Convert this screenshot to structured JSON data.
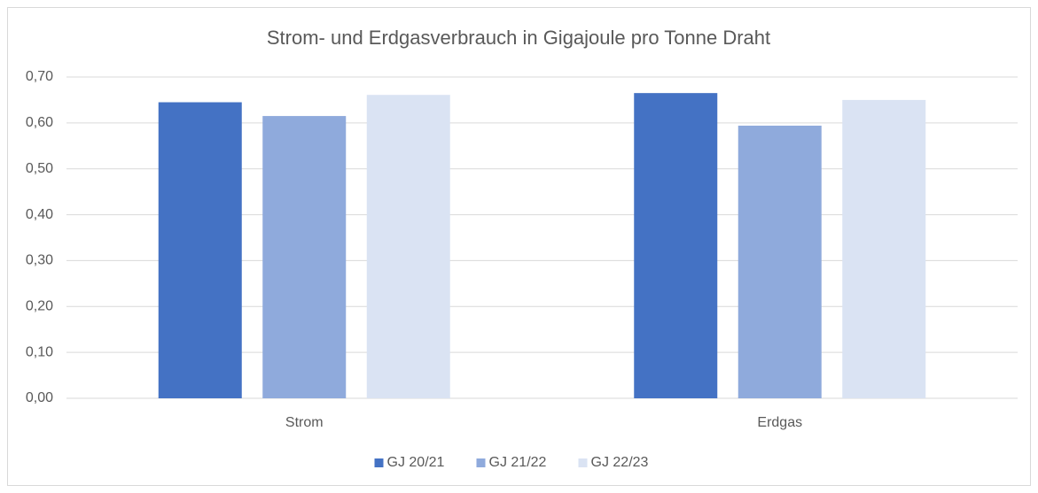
{
  "chart_data": {
    "type": "bar",
    "title": "Strom- und Erdgasverbrauch in Gigajoule pro Tonne Draht",
    "categories": [
      "Strom",
      "Erdgas"
    ],
    "series": [
      {
        "name": "GJ 20/21",
        "color": "#4472c4",
        "values": [
          0.645,
          0.665
        ]
      },
      {
        "name": "GJ 21/22",
        "color": "#8faadc",
        "values": [
          0.615,
          0.594
        ]
      },
      {
        "name": "GJ 22/23",
        "color": "#dae3f3",
        "values": [
          0.661,
          0.65
        ]
      }
    ],
    "ylim": [
      0,
      0.7
    ],
    "yticks": [
      {
        "value": 0,
        "label": "0,00"
      },
      {
        "value": 0.1,
        "label": "0,10"
      },
      {
        "value": 0.2,
        "label": "0,20"
      },
      {
        "value": 0.3,
        "label": "0,30"
      },
      {
        "value": 0.4,
        "label": "0,40"
      },
      {
        "value": 0.5,
        "label": "0,50"
      },
      {
        "value": 0.6,
        "label": "0,60"
      },
      {
        "value": 0.7,
        "label": "0,70"
      }
    ],
    "grid": true,
    "legend": "bottom"
  }
}
